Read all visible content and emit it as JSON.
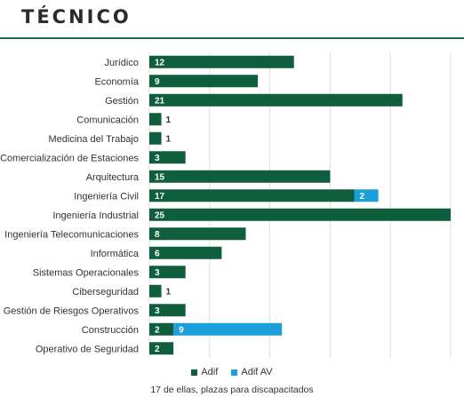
{
  "header": {
    "title": "TÉCNICO"
  },
  "legend": {
    "adif_label": "Adif",
    "adif_av_label": "Adif AV"
  },
  "note": "17 de ellas, plazas para discapacitados",
  "colors": {
    "adif": "#0f5f3e",
    "adif_av": "#1a9fd8",
    "rule": "#1e6b4a",
    "grid": "#dddddd"
  },
  "chart_data": {
    "type": "bar",
    "orientation": "horizontal",
    "stacked": true,
    "title": "TÉCNICO",
    "categories": [
      "Jurídico",
      "Economía",
      "Gestión",
      "Comunicación",
      "Medicina del Trabajo",
      "Comercialización de Estaciones",
      "Arquitectura",
      "Ingeniería Civil",
      "Ingeniería Industrial",
      "Ingeniería Telecomunicaciones",
      "Informática",
      "Sistemas Operacionales",
      "Ciberseguridad",
      "Gestión de Riesgos Operativos",
      "Construcción",
      "Operativo de Seguridad"
    ],
    "series": [
      {
        "name": "Adif",
        "values": [
          12,
          9,
          21,
          1,
          1,
          3,
          15,
          17,
          25,
          8,
          6,
          3,
          1,
          3,
          2,
          2
        ]
      },
      {
        "name": "Adif AV",
        "values": [
          0,
          0,
          0,
          0,
          0,
          0,
          0,
          2,
          0,
          0,
          0,
          0,
          0,
          0,
          9,
          0
        ]
      }
    ],
    "xlim": [
      0,
      25
    ],
    "grid": true,
    "legend_position": "bottom"
  }
}
